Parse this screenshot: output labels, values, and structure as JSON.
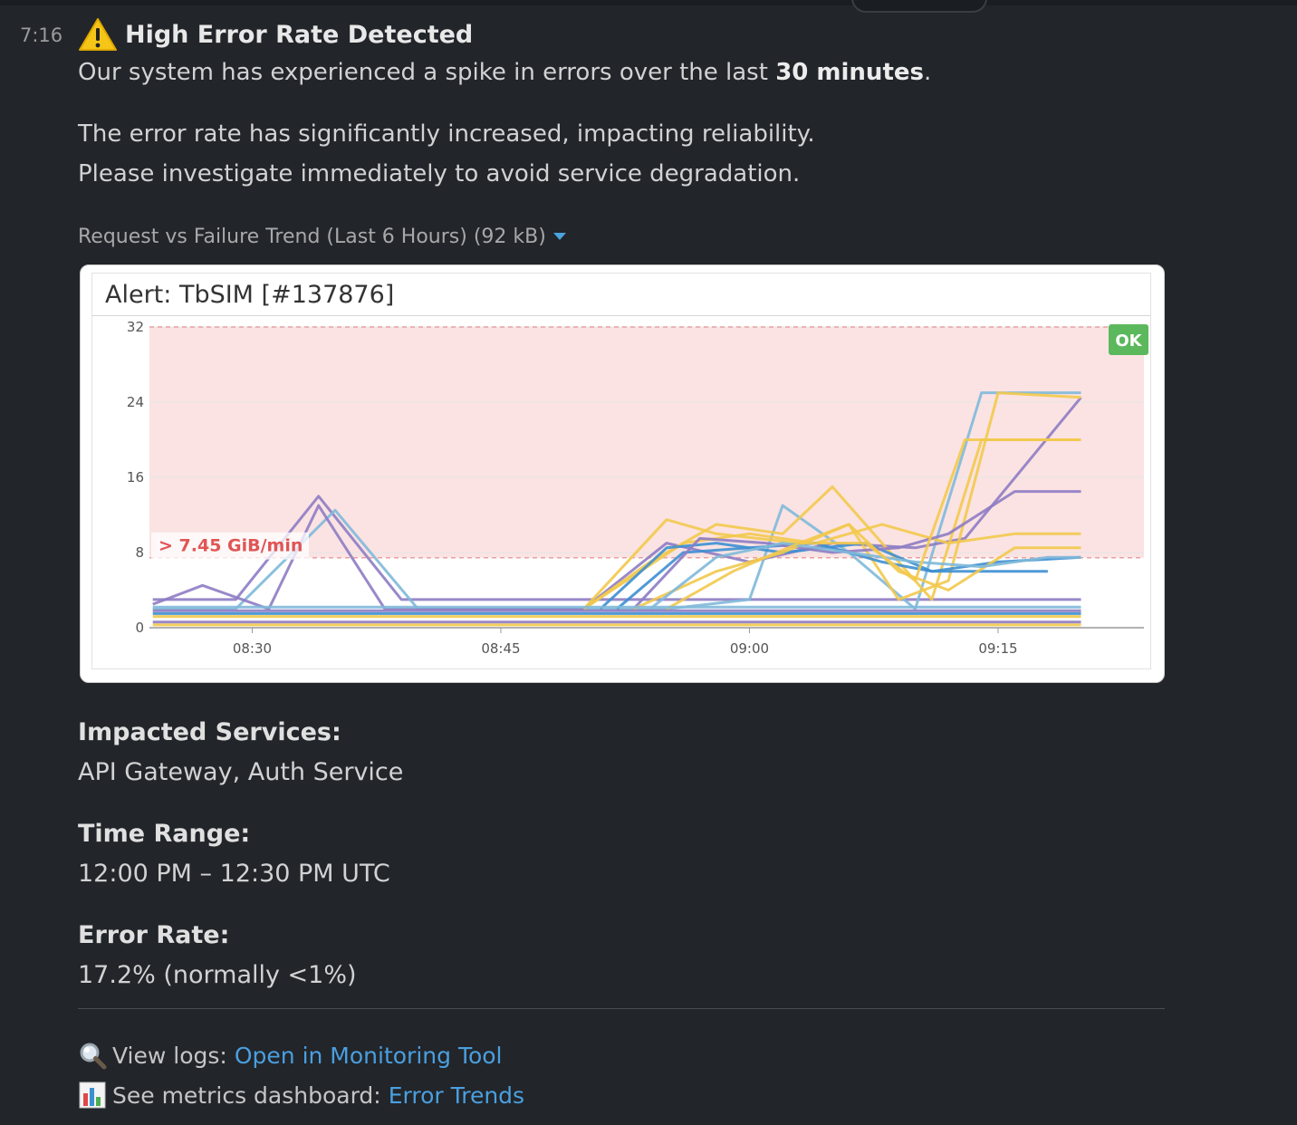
{
  "message": {
    "timestamp": "7:16",
    "icon": "warning-icon",
    "title": "High Error Rate Detected",
    "line1_pre": "Our system has experienced a spike in errors over the last ",
    "line1_bold": "30 minutes",
    "line1_post": ".",
    "line2": "The error rate has significantly increased, impacting reliability.",
    "line3": "Please investigate immediately to avoid service degradation."
  },
  "attachment": {
    "file_label": "Request vs Failure Trend (Last 6 Hours) (92 kB)"
  },
  "chart_data": {
    "type": "line",
    "title": "Alert: TbSIM [#137876]",
    "status_badge": "OK",
    "threshold_label": "> 7.45 GiB/min",
    "threshold": 7.45,
    "ylim": [
      0,
      32
    ],
    "yticks": [
      "0",
      "8",
      "16",
      "24",
      "32"
    ],
    "xticks": [
      "08:30",
      "08:45",
      "09:00",
      "09:15"
    ],
    "xtick_minutes": [
      30,
      45,
      60,
      75
    ],
    "xlim_minutes": [
      23.8,
      83.8
    ],
    "colors": {
      "threshold_fill": "#fbe3e3",
      "threshold_line": "#e8a0a0",
      "threshold_text": "#e05555",
      "badge": "#5cb85c",
      "purple": "#8e7cc3",
      "blue": "#3d8fd1",
      "lightblue": "#7fb9d9",
      "yellow": "#f2c94c"
    },
    "series": [
      {
        "color": "#8e7cc3",
        "x": [
          24,
          29,
          34,
          39,
          44,
          49,
          55,
          60,
          65,
          70,
          75,
          80
        ],
        "y": [
          3,
          3,
          14,
          3,
          3,
          3,
          3,
          3,
          3,
          3,
          3,
          3
        ]
      },
      {
        "color": "#7fb9d9",
        "x": [
          24,
          29,
          35,
          40,
          49,
          55,
          60,
          62,
          66,
          70,
          74,
          80
        ],
        "y": [
          2,
          2,
          12.5,
          2,
          2,
          2,
          3,
          13,
          8,
          2,
          25,
          25
        ]
      },
      {
        "color": "#8e7cc3",
        "x": [
          24,
          27,
          31,
          34,
          38,
          50,
          55,
          60,
          65,
          70,
          73,
          80
        ],
        "y": [
          2.5,
          4.5,
          2,
          13,
          2,
          2,
          9,
          7,
          9,
          8.5,
          9.5,
          24.5
        ]
      },
      {
        "color": "#f2c94c",
        "x": [
          50,
          55,
          58,
          63,
          66,
          69,
          72,
          75,
          80
        ],
        "y": [
          2,
          11.5,
          10,
          9,
          11,
          3,
          5,
          25,
          24.5
        ]
      },
      {
        "color": "#f2c94c",
        "x": [
          50,
          54,
          58,
          62,
          65,
          68,
          71,
          74,
          80
        ],
        "y": [
          2,
          7,
          11,
          10,
          15,
          9,
          3,
          20,
          20
        ]
      },
      {
        "color": "#f2c94c",
        "x": [
          50,
          56,
          60,
          64,
          68,
          72,
          76,
          80
        ],
        "y": [
          2,
          9,
          10,
          9,
          11,
          9,
          10,
          10
        ]
      },
      {
        "color": "#3d8fd1",
        "x": [
          51,
          55,
          58,
          62,
          67,
          71,
          75,
          80
        ],
        "y": [
          2,
          8.5,
          9,
          8,
          9,
          6,
          7,
          7.5
        ]
      },
      {
        "color": "#3d8fd1",
        "x": [
          52,
          56,
          60,
          64,
          68,
          71,
          74,
          78
        ],
        "y": [
          2,
          8,
          8.5,
          9,
          7,
          6,
          6,
          6
        ]
      },
      {
        "color": "#8e7cc3",
        "x": [
          53,
          57,
          61,
          65,
          69,
          72,
          76,
          80
        ],
        "y": [
          2,
          9.5,
          9,
          8,
          8.5,
          10,
          14.5,
          14.5
        ]
      },
      {
        "color": "#f2c94c",
        "x": [
          53,
          58,
          62,
          66,
          69,
          72,
          76,
          80
        ],
        "y": [
          2,
          6,
          8,
          11,
          6,
          4,
          8.5,
          8.5
        ]
      },
      {
        "color": "#7fb9d9",
        "x": [
          54,
          58,
          62,
          66,
          70,
          74,
          78,
          80
        ],
        "y": [
          2,
          7.5,
          9,
          8,
          7,
          6.5,
          7.5,
          7.5
        ]
      },
      {
        "color": "#f2c94c",
        "x": [
          55,
          59,
          63,
          67,
          70,
          73,
          77,
          80
        ],
        "y": [
          2,
          6,
          9,
          9,
          5,
          20,
          20,
          20
        ]
      },
      {
        "color": "#8e7cc3",
        "x": [
          24,
          34,
          44,
          54,
          64,
          74,
          80
        ],
        "y": [
          1.8,
          1.8,
          1.8,
          1.8,
          1.8,
          1.8,
          1.8
        ]
      },
      {
        "color": "#f2c94c",
        "x": [
          24,
          34,
          44,
          54,
          64,
          74,
          80
        ],
        "y": [
          1.2,
          1.2,
          1.2,
          1.2,
          1.2,
          1.2,
          1.2
        ]
      },
      {
        "color": "#3d8fd1",
        "x": [
          24,
          34,
          44,
          54,
          64,
          74,
          80
        ],
        "y": [
          1.5,
          1.5,
          1.5,
          1.5,
          1.5,
          1.5,
          1.5
        ]
      },
      {
        "color": "#7fb9d9",
        "x": [
          24,
          34,
          44,
          54,
          64,
          74,
          80
        ],
        "y": [
          2.2,
          2.2,
          2.2,
          2.2,
          2.2,
          2.2,
          2.2
        ]
      },
      {
        "color": "#8e7cc3",
        "x": [
          24,
          34,
          44,
          54,
          64,
          74,
          80
        ],
        "y": [
          0.6,
          0.6,
          0.6,
          0.6,
          0.6,
          0.6,
          0.6
        ]
      },
      {
        "color": "#f2c94c",
        "x": [
          24,
          34,
          44,
          54,
          64,
          74,
          80
        ],
        "y": [
          0.3,
          0.3,
          0.3,
          0.3,
          0.3,
          0.3,
          0.3
        ]
      }
    ]
  },
  "details": {
    "impacted_head": "Impacted Services:",
    "impacted_val": "API Gateway, Auth Service",
    "time_head": "Time Range:",
    "time_val": "12:00 PM – 12:30 PM UTC",
    "rate_head": "Error Rate:",
    "rate_val": "17.2% (normally <1%)"
  },
  "links": {
    "logs_icon": "magnifier-icon",
    "logs_label": "View logs:",
    "logs_link": "Open in Monitoring Tool",
    "metrics_icon": "bar-chart-icon",
    "metrics_label": "See metrics dashboard:",
    "metrics_link": "Error Trends"
  }
}
